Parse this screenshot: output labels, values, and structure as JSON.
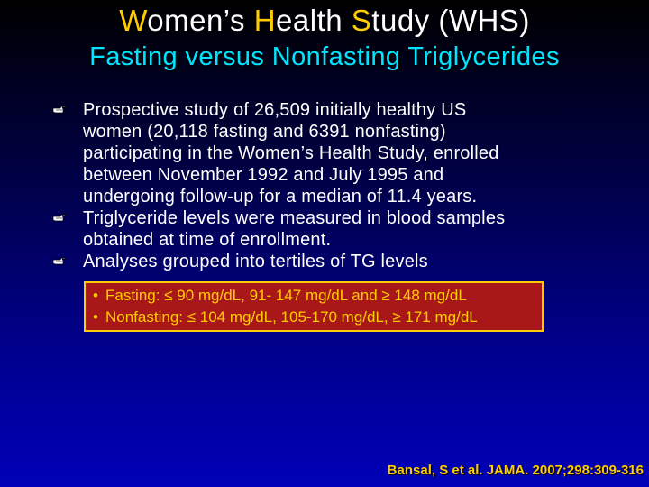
{
  "title": {
    "line1_parts": [
      "W",
      "omen’s ",
      "H",
      "ealth ",
      "S",
      "tudy (WHS)"
    ],
    "line2": "Fasting versus Nonfasting Triglycerides"
  },
  "bullets": [
    {
      "icon": "pointing-hand-icon",
      "lines": [
        "Prospective study of 26,509 initially healthy US",
        "women (20,118 fasting and 6391 nonfasting)",
        "participating in the Women’s Health Study, enrolled",
        "between November 1992 and July 1995 and",
        "undergoing follow-up for a median of 11.4 years."
      ]
    },
    {
      "icon": "pointing-hand-icon",
      "lines": [
        "Triglyceride levels were measured in blood samples",
        "obtained at time of enrollment."
      ]
    },
    {
      "icon": "pointing-hand-icon",
      "lines": [
        "Analyses grouped into tertiles of TG levels"
      ]
    }
  ],
  "subitems": [
    {
      "bullet": "•",
      "text": "Fasting: ≤ 90 mg/dL, 91- 147 mg/dL and ≥ 148 mg/dL"
    },
    {
      "bullet": "•",
      "text": "Nonfasting: ≤ 104 mg/dL, 105-170 mg/dL, ≥ 171 mg/dL"
    }
  ],
  "citation": "Bansal, S et al. JAMA. 2007;298:309-316",
  "colors": {
    "title_white": "#ffffff",
    "title_highlight": "#ffcc00",
    "subtitle": "#00e5ff",
    "box_fill": "#a81818",
    "box_text": "#ffcc00",
    "citation": "#ffcc00"
  }
}
